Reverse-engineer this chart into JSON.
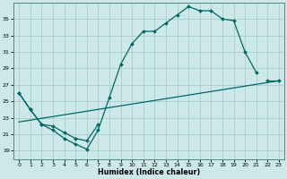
{
  "xlabel": "Humidex (Indice chaleur)",
  "bg_color": "#cde8e8",
  "grid_color": "#a8cccc",
  "line_color": "#006666",
  "xlim": [
    -0.5,
    23.5
  ],
  "ylim": [
    18.0,
    37.0
  ],
  "yticks": [
    19,
    21,
    23,
    25,
    27,
    29,
    31,
    33,
    35
  ],
  "xticks": [
    0,
    1,
    2,
    3,
    4,
    5,
    6,
    7,
    8,
    9,
    10,
    11,
    12,
    13,
    14,
    15,
    16,
    17,
    18,
    19,
    20,
    21,
    22,
    23
  ],
  "curve1_x": [
    0,
    1,
    2,
    3,
    4,
    5,
    6,
    7,
    8,
    9,
    10,
    11,
    12,
    13,
    14,
    15,
    16,
    17,
    18,
    19,
    20,
    21
  ],
  "curve1_y": [
    26.0,
    24.0,
    22.2,
    21.5,
    20.5,
    19.8,
    19.2,
    21.5,
    25.5,
    29.5,
    32.0,
    33.5,
    33.5,
    34.5,
    35.5,
    36.5,
    36.0,
    36.0,
    35.0,
    34.8,
    31.0,
    28.5
  ],
  "curve2_x": [
    0,
    1,
    2,
    3,
    4,
    5,
    6,
    7,
    22,
    23
  ],
  "curve2_y": [
    26.0,
    24.0,
    22.2,
    22.0,
    21.2,
    20.5,
    20.2,
    22.2,
    27.5,
    27.5
  ],
  "curve3_x": [
    0,
    23
  ],
  "curve3_y": [
    22.5,
    27.5
  ]
}
